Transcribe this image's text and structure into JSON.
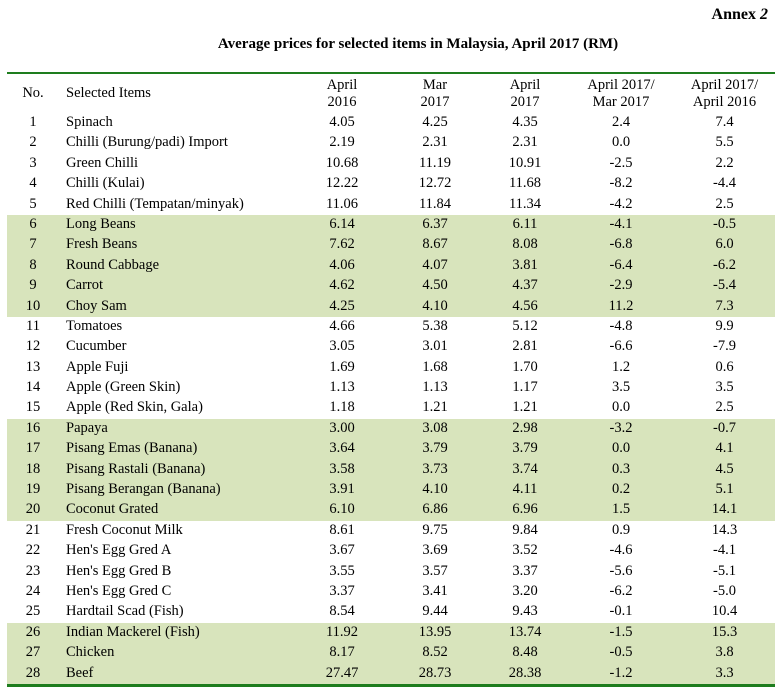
{
  "annex": {
    "label": "Annex",
    "number": "2"
  },
  "title": "Average prices for selected items in Malaysia, April 2017 (RM)",
  "colors": {
    "rule": "#1e7d1e",
    "shade": "#d8e4bc"
  },
  "columns": [
    [
      "No."
    ],
    [
      "Selected Items"
    ],
    [
      "April",
      "2016"
    ],
    [
      "Mar",
      "2017"
    ],
    [
      "April",
      "2017"
    ],
    [
      "April 2017/",
      "Mar 2017"
    ],
    [
      "April 2017/",
      "April 2016"
    ]
  ],
  "rows": [
    [
      "1",
      "Spinach",
      "4.05",
      "4.25",
      "4.35",
      "2.4",
      "7.4"
    ],
    [
      "2",
      "Chilli (Burung/padi) Import",
      "2.19",
      "2.31",
      "2.31",
      "0.0",
      "5.5"
    ],
    [
      "3",
      "Green Chilli",
      "10.68",
      "11.19",
      "10.91",
      "-2.5",
      "2.2"
    ],
    [
      "4",
      "Chilli (Kulai)",
      "12.22",
      "12.72",
      "11.68",
      "-8.2",
      "-4.4"
    ],
    [
      "5",
      "Red Chilli (Tempatan/minyak)",
      "11.06",
      "11.84",
      "11.34",
      "-4.2",
      "2.5"
    ],
    [
      "6",
      "Long Beans",
      "6.14",
      "6.37",
      "6.11",
      "-4.1",
      "-0.5"
    ],
    [
      "7",
      "Fresh Beans",
      "7.62",
      "8.67",
      "8.08",
      "-6.8",
      "6.0"
    ],
    [
      "8",
      "Round Cabbage",
      "4.06",
      "4.07",
      "3.81",
      "-6.4",
      "-6.2"
    ],
    [
      "9",
      "Carrot",
      "4.62",
      "4.50",
      "4.37",
      "-2.9",
      "-5.4"
    ],
    [
      "10",
      "Choy Sam",
      "4.25",
      "4.10",
      "4.56",
      "11.2",
      "7.3"
    ],
    [
      "11",
      "Tomatoes",
      "4.66",
      "5.38",
      "5.12",
      "-4.8",
      "9.9"
    ],
    [
      "12",
      "Cucumber",
      "3.05",
      "3.01",
      "2.81",
      "-6.6",
      "-7.9"
    ],
    [
      "13",
      "Apple Fuji",
      "1.69",
      "1.68",
      "1.70",
      "1.2",
      "0.6"
    ],
    [
      "14",
      "Apple (Green Skin)",
      "1.13",
      "1.13",
      "1.17",
      "3.5",
      "3.5"
    ],
    [
      "15",
      "Apple (Red Skin, Gala)",
      "1.18",
      "1.21",
      "1.21",
      "0.0",
      "2.5"
    ],
    [
      "16",
      "Papaya",
      "3.00",
      "3.08",
      "2.98",
      "-3.2",
      "-0.7"
    ],
    [
      "17",
      "Pisang Emas (Banana)",
      "3.64",
      "3.79",
      "3.79",
      "0.0",
      "4.1"
    ],
    [
      "18",
      "Pisang Rastali (Banana)",
      "3.58",
      "3.73",
      "3.74",
      "0.3",
      "4.5"
    ],
    [
      "19",
      "Pisang Berangan (Banana)",
      "3.91",
      "4.10",
      "4.11",
      "0.2",
      "5.1"
    ],
    [
      "20",
      "Coconut Grated",
      "6.10",
      "6.86",
      "6.96",
      "1.5",
      "14.1"
    ],
    [
      "21",
      "Fresh Coconut Milk",
      "8.61",
      "9.75",
      "9.84",
      "0.9",
      "14.3"
    ],
    [
      "22",
      "Hen's Egg Gred A",
      "3.67",
      "3.69",
      "3.52",
      "-4.6",
      "-4.1"
    ],
    [
      "23",
      "Hen's Egg Gred B",
      "3.55",
      "3.57",
      "3.37",
      "-5.6",
      "-5.1"
    ],
    [
      "24",
      "Hen's Egg Gred C",
      "3.37",
      "3.41",
      "3.20",
      "-6.2",
      "-5.0"
    ],
    [
      "25",
      "Hardtail Scad (Fish)",
      "8.54",
      "9.44",
      "9.43",
      "-0.1",
      "10.4"
    ],
    [
      "26",
      "Indian Mackerel (Fish)",
      "11.92",
      "13.95",
      "13.74",
      "-1.5",
      "15.3"
    ],
    [
      "27",
      "Chicken",
      "8.17",
      "8.52",
      "8.48",
      "-0.5",
      "3.8"
    ],
    [
      "28",
      "Beef",
      "27.47",
      "28.73",
      "28.38",
      "-1.2",
      "3.3"
    ]
  ]
}
